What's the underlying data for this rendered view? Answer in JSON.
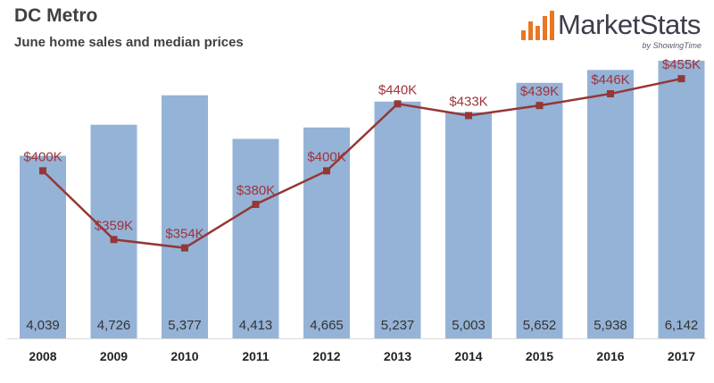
{
  "header": {
    "title": "DC Metro",
    "subtitle": "June home sales and median prices"
  },
  "logo": {
    "name": "MarketStats",
    "tagline": "by ShowingTime",
    "icon": "bar-chart-logo-icon",
    "color": "#e87722"
  },
  "colors": {
    "bar": "#95b3d7",
    "line": "#953735",
    "price_label": "#a0323a"
  },
  "chart_data": {
    "type": "bar",
    "categories": [
      "2008",
      "2009",
      "2010",
      "2011",
      "2012",
      "2013",
      "2014",
      "2015",
      "2016",
      "2017"
    ],
    "series": [
      {
        "type": "bar",
        "values": [
          4039,
          4726,
          5377,
          4413,
          4665,
          5237,
          5003,
          5652,
          5938,
          6142
        ],
        "labels": [
          "4,039",
          "4,726",
          "5,377",
          "4,413",
          "4,665",
          "5,237",
          "5,003",
          "5,652",
          "5,938",
          "6,142"
        ]
      },
      {
        "type": "line",
        "values": [
          400,
          359,
          354,
          380,
          400,
          440,
          433,
          439,
          446,
          455
        ],
        "labels": [
          "$400K",
          "$359K",
          "$354K",
          "$380K",
          "$400K",
          "$440K",
          "$433K",
          "$439K",
          "$446K",
          "$455K"
        ]
      }
    ],
    "bar_axis_range": [
      0,
      6300
    ],
    "line_axis_range": [
      300,
      470
    ],
    "grid": false,
    "legend": "none"
  }
}
